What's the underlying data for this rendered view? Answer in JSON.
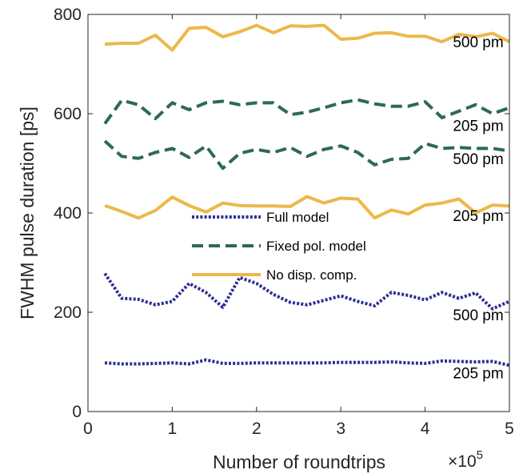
{
  "chart_data": {
    "type": "line",
    "title": "",
    "xlabel": "Number of roundtrips",
    "x_multiplier_base": "×10",
    "x_multiplier_exp": "5",
    "ylabel": "FWHM pulse duration [ps]",
    "xlim": [
      0,
      5
    ],
    "ylim": [
      0,
      800
    ],
    "x_ticks": [
      "0",
      "1",
      "2",
      "3",
      "4",
      "5"
    ],
    "y_ticks": [
      "0",
      "200",
      "400",
      "600",
      "800"
    ],
    "grid": false,
    "legend_position": "center",
    "x": [
      0.2,
      0.4,
      0.6,
      0.8,
      1.0,
      1.2,
      1.4,
      1.6,
      1.8,
      2.0,
      2.2,
      2.4,
      2.6,
      2.8,
      3.0,
      3.2,
      3.4,
      3.6,
      3.8,
      4.0,
      4.2,
      4.4,
      4.6,
      4.8,
      5.0
    ],
    "series": [
      {
        "name": "Full model",
        "style": "dotted",
        "color": "#2b2f94",
        "case": "205 pm",
        "values": [
          98,
          96,
          96,
          97,
          98,
          96,
          104,
          97,
          97,
          98,
          98,
          98,
          98,
          98,
          99,
          99,
          99,
          100,
          98,
          97,
          102,
          101,
          100,
          101,
          93
        ]
      },
      {
        "name": "",
        "style": "dotted",
        "color": "#2b2f94",
        "case": "500 pm",
        "values": [
          278,
          228,
          226,
          215,
          222,
          258,
          240,
          210,
          270,
          258,
          236,
          220,
          215,
          224,
          233,
          222,
          213,
          240,
          234,
          225,
          240,
          228,
          239,
          207,
          222
        ]
      },
      {
        "name": "Fixed pol. model",
        "style": "dashed",
        "color": "#2e6b4e",
        "case": "205 pm",
        "values": [
          580,
          627,
          618,
          590,
          622,
          608,
          622,
          625,
          618,
          622,
          622,
          598,
          603,
          612,
          622,
          628,
          620,
          615,
          615,
          624,
          592,
          605,
          618,
          600,
          612
        ]
      },
      {
        "name": "",
        "style": "dashed",
        "color": "#2e6b4e",
        "case": "500 pm",
        "values": [
          545,
          514,
          510,
          522,
          530,
          512,
          535,
          490,
          520,
          528,
          522,
          532,
          514,
          528,
          535,
          522,
          497,
          508,
          510,
          540,
          530,
          532,
          530,
          530,
          525
        ]
      },
      {
        "name": "No disp. comp.",
        "style": "solid",
        "color": "#edb84a",
        "case": "205 pm",
        "values": [
          415,
          403,
          390,
          405,
          432,
          415,
          402,
          420,
          415,
          414,
          414,
          413,
          433,
          420,
          430,
          428,
          390,
          406,
          398,
          416,
          420,
          428,
          400,
          416,
          414
        ]
      },
      {
        "name": "",
        "style": "solid",
        "color": "#edb84a",
        "case": "500 pm",
        "values": [
          740,
          742,
          742,
          758,
          728,
          772,
          774,
          755,
          765,
          778,
          763,
          777,
          776,
          778,
          750,
          752,
          762,
          763,
          756,
          756,
          745,
          760,
          755,
          762,
          745
        ]
      }
    ],
    "annotations": [
      {
        "text": "500 pm",
        "x": 4.63,
        "y": 745
      },
      {
        "text": "205 pm",
        "x": 4.63,
        "y": 577
      },
      {
        "text": "500 pm",
        "x": 4.63,
        "y": 510
      },
      {
        "text": "205 pm",
        "x": 4.63,
        "y": 395
      },
      {
        "text": "500 pm",
        "x": 4.63,
        "y": 195
      },
      {
        "text": "205 pm",
        "x": 4.63,
        "y": 78
      }
    ]
  }
}
